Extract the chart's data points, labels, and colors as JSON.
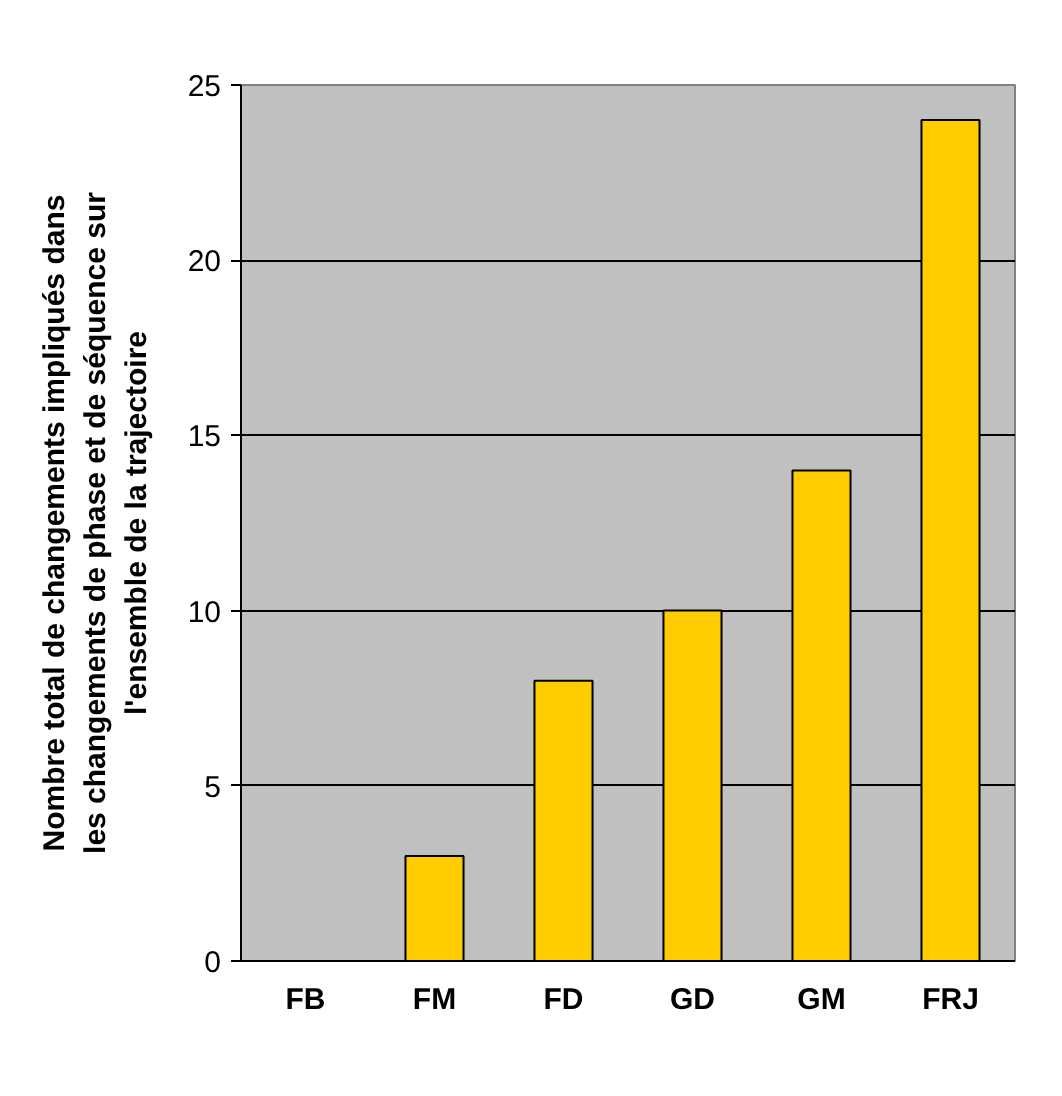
{
  "chart_data": {
    "type": "bar",
    "ylabel": "Nombre total de changements impliqués dans les changements de phase et de séquence sur l'ensemble de la trajectoire",
    "categories": [
      "FB",
      "FM",
      "FD",
      "GD",
      "GM",
      "FRJ"
    ],
    "values": [
      0,
      3,
      8,
      10,
      14,
      24
    ],
    "color": "#ffcc00",
    "ylim": [
      0,
      25
    ],
    "yticks": [
      0,
      5,
      10,
      15,
      20,
      25
    ],
    "grid": "y"
  }
}
